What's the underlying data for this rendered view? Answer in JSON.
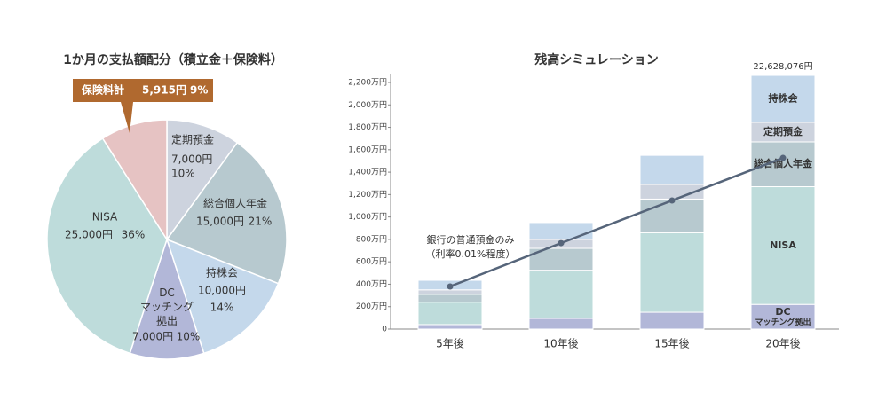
{
  "chart_data": [
    {
      "type": "pie",
      "title": "1か月の支払額配分（積立金＋保険料）",
      "categories": [
        "定期預金",
        "総合個人年金",
        "持株会",
        "DC マッチング 拠出",
        "NISA",
        "保険料計"
      ],
      "amounts": [
        "7,000円",
        "15,000円",
        "10,000円",
        "7,000円",
        "25,000円",
        "5,915円"
      ],
      "values": [
        10,
        21,
        14,
        10,
        36,
        9
      ],
      "value_labels": [
        "10%",
        "21%",
        "14%",
        "10%",
        "36%",
        "9%"
      ],
      "colors": [
        "#cdd3de",
        "#b7c9cf",
        "#c4d8eb",
        "#b2b7d8",
        "#bedcdb",
        "#e6c3c3"
      ]
    },
    {
      "type": "stacked-bar",
      "title": "残高シミュレーション",
      "categories": [
        "5年後",
        "10年後",
        "15年後",
        "20年後"
      ],
      "series": [
        {
          "name": "DC マッチング拠出",
          "color": "#b2b7d8",
          "values": [
            40,
            95,
            150,
            220
          ]
        },
        {
          "name": "NISA",
          "color": "#bedcdb",
          "values": [
            200,
            430,
            710,
            1050
          ]
        },
        {
          "name": "総合個人年金",
          "color": "#b7c9cf",
          "values": [
            70,
            195,
            300,
            400
          ]
        },
        {
          "name": "定期預金",
          "color": "#cdd3de",
          "values": [
            40,
            80,
            130,
            175
          ]
        },
        {
          "name": "持株会",
          "color": "#c4d8eb",
          "values": [
            85,
            150,
            260,
            418
          ]
        }
      ],
      "line": {
        "name": "銀行の普通預金のみ",
        "note": "（利率0.01%程度）",
        "color": "#56657a",
        "values": [
          380,
          767,
          1147,
          1527
        ]
      },
      "total_label": "22,628,076円",
      "ylim": [
        0,
        2200
      ],
      "yticks": [
        {
          "value": 0,
          "label": "0"
        },
        {
          "value": 200,
          "label": "200万円"
        },
        {
          "value": 400,
          "label": "400万円"
        },
        {
          "value": 600,
          "label": "600万円"
        },
        {
          "value": 800,
          "label": "800万円"
        },
        {
          "value": 1000,
          "label": "1,000万円"
        },
        {
          "value": 1200,
          "label": "1,200万円"
        },
        {
          "value": 1400,
          "label": "1,400万円"
        },
        {
          "value": 1600,
          "label": "1,600万円"
        },
        {
          "value": 1800,
          "label": "1,800万円"
        },
        {
          "value": 2000,
          "label": "2,000万円"
        },
        {
          "value": 2200,
          "label": "2,200万円"
        }
      ]
    }
  ]
}
